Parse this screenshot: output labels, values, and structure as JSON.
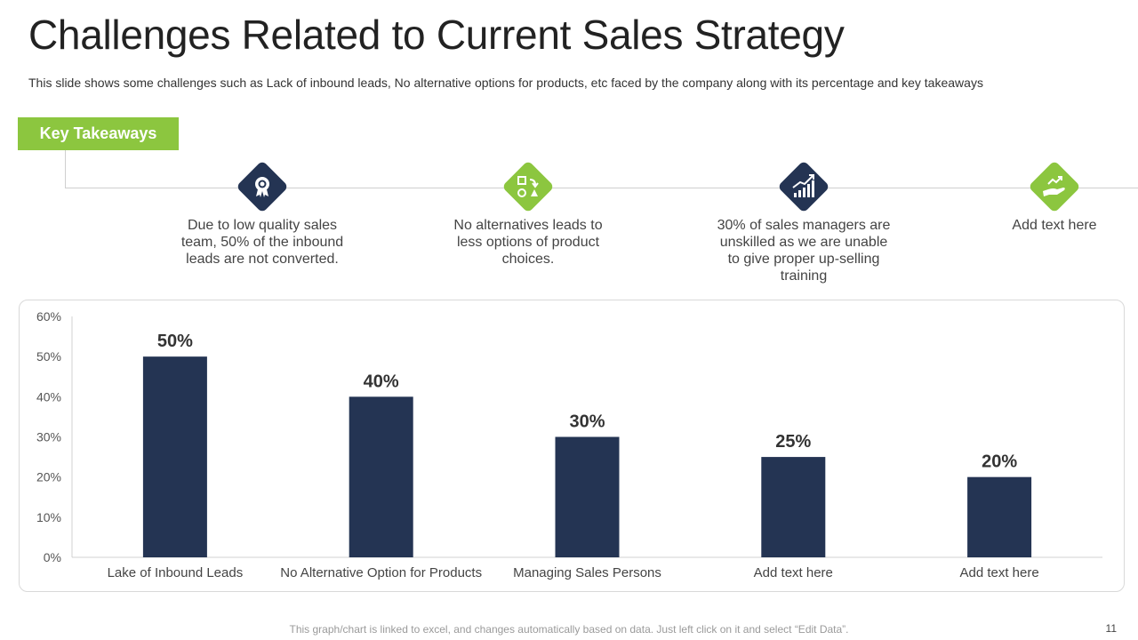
{
  "header": {
    "title": "Challenges Related to Current Sales Strategy",
    "subtitle": "This slide shows some challenges such as Lack of inbound leads, No alternative options for products, etc faced by the company along with its percentage and key takeaways"
  },
  "key_takeaways": {
    "label": "Key Takeaways",
    "items": [
      {
        "text": "Due to low quality sales team, 50% of the inbound leads are not converted.",
        "icon": "award-badge-icon",
        "color": "#243453"
      },
      {
        "text": "No alternatives leads to less options of product choices.",
        "icon": "shapes-exchange-icon",
        "color": "#8cc63f"
      },
      {
        "text": "30% of sales managers are unskilled as we are unable to give proper up-selling training",
        "icon": "growth-chart-icon",
        "color": "#243453"
      },
      {
        "text": "Add text here",
        "icon": "hand-growth-icon",
        "color": "#8cc63f"
      }
    ]
  },
  "chart_data": {
    "type": "bar",
    "categories": [
      "Lake of Inbound Leads",
      "No Alternative Option for Products",
      "Managing Sales Persons",
      "Add text here",
      "Add text here"
    ],
    "values": [
      50,
      40,
      30,
      25,
      20
    ],
    "value_labels": [
      "50%",
      "40%",
      "30%",
      "25%",
      "20%"
    ],
    "yticks": [
      "0%",
      "10%",
      "20%",
      "30%",
      "40%",
      "50%",
      "60%"
    ],
    "ylim": [
      0,
      60
    ],
    "grid": false,
    "legend": "none",
    "bar_color": "#243453"
  },
  "footer": {
    "note": "This graph/chart is linked to excel, and changes automatically based on data. Just left click on it and select “Edit Data”.",
    "page_number": "11"
  }
}
